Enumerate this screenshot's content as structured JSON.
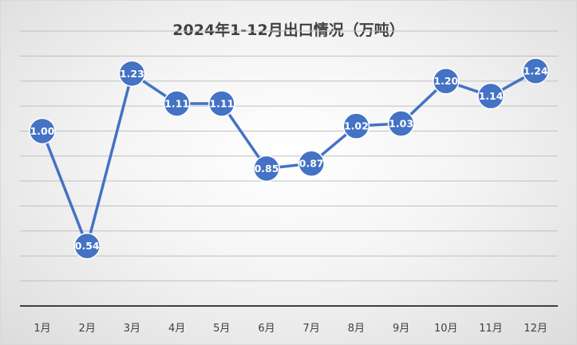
{
  "chart_data": {
    "type": "line",
    "title": "2024年1-12月出口情况（万吨）",
    "categories": [
      "1月",
      "2月",
      "3月",
      "4月",
      "5月",
      "6月",
      "7月",
      "8月",
      "9月",
      "10月",
      "11月",
      "12月"
    ],
    "series": [
      {
        "values": [
          1.0,
          0.54,
          1.23,
          1.11,
          1.11,
          0.85,
          0.87,
          1.02,
          1.03,
          1.2,
          1.14,
          1.24
        ],
        "labels": [
          "1.00",
          "0.54",
          "1.23",
          "1.11",
          "1.11",
          "0.85",
          "0.87",
          "1.02",
          "1.03",
          "1.20",
          "1.14",
          "1.24"
        ]
      }
    ],
    "xlabel": "",
    "ylabel": "",
    "ylim": [
      0.3,
      1.4
    ],
    "y_gridlines": [
      0.3,
      0.4,
      0.5,
      0.6,
      0.7,
      0.8,
      0.9,
      1.0,
      1.1,
      1.2,
      1.3,
      1.4
    ],
    "grid": true,
    "y_tick_labels_visible": false,
    "legend": "none",
    "colors": {
      "line": "#4472c4",
      "marker_fill": "#4472c4",
      "marker_stroke": "#ffffff",
      "gridline": "#bfbfbf",
      "axis": "#404040",
      "label_text": "#ffffff",
      "title_text": "#404040"
    }
  }
}
